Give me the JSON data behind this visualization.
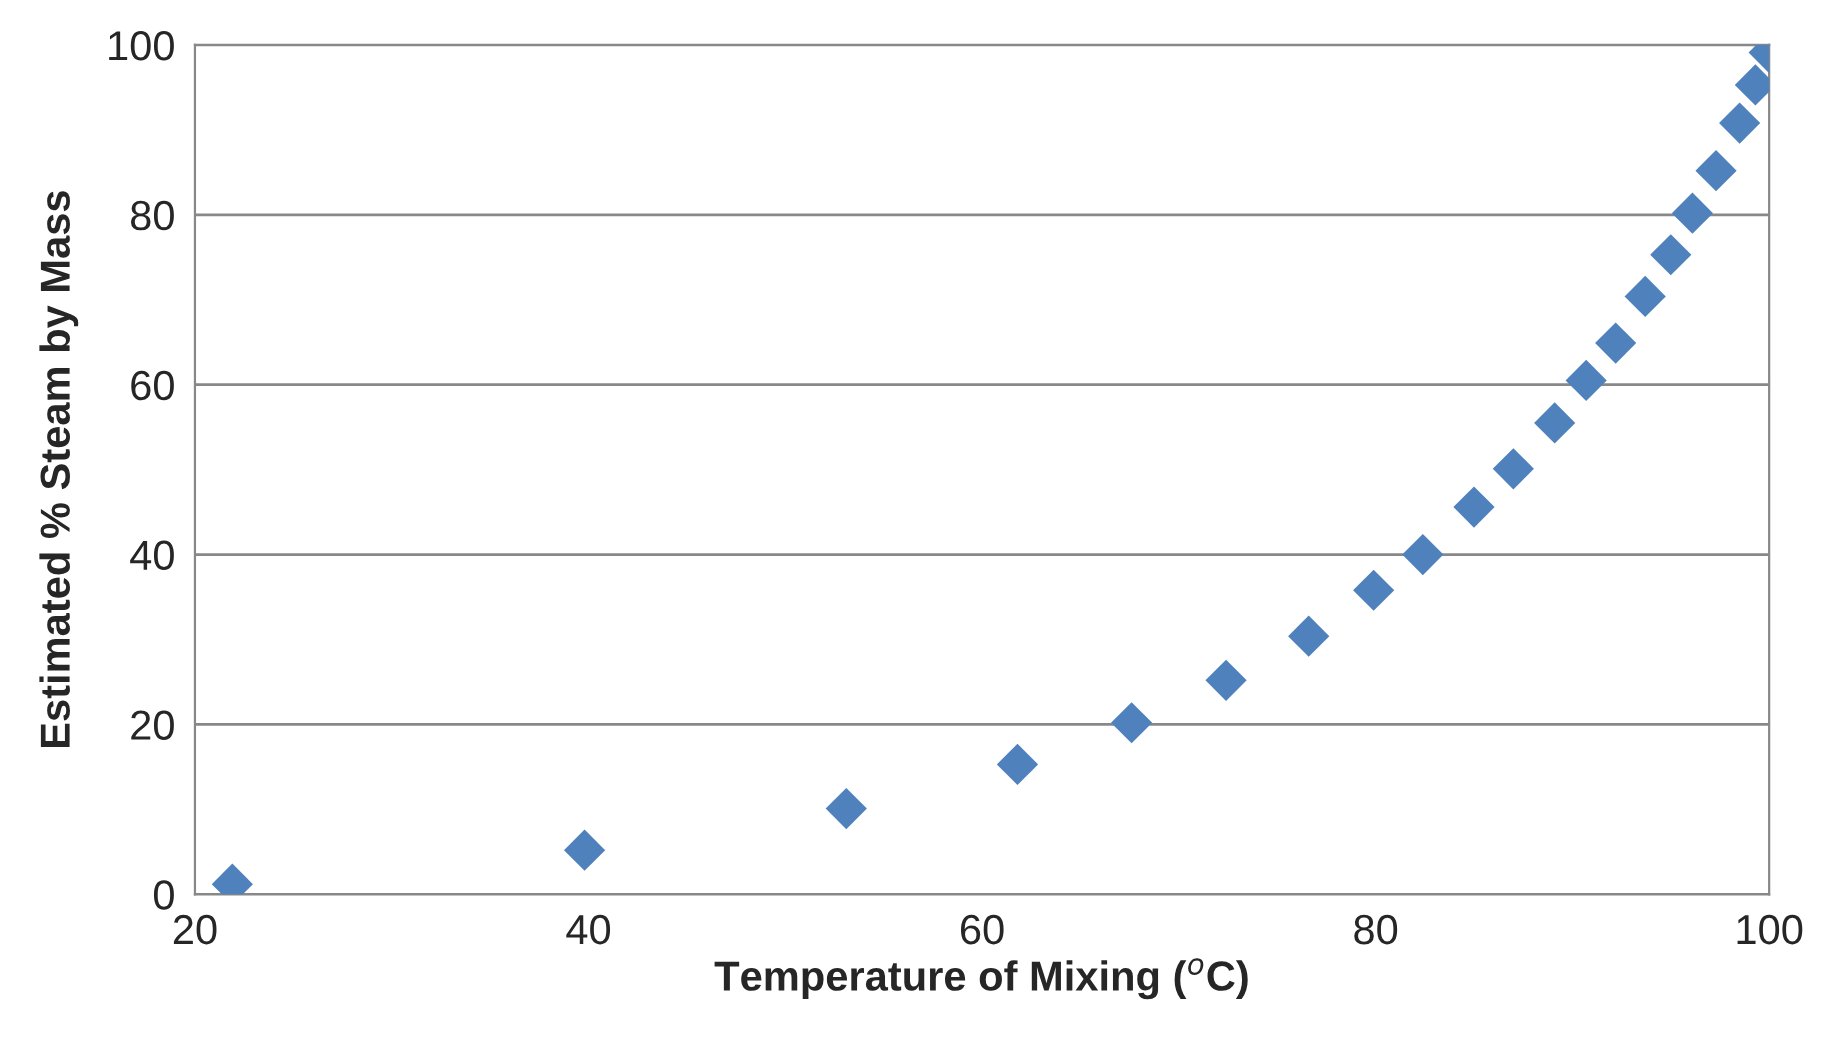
{
  "chart_data": {
    "type": "scatter",
    "xlabel": "Temperature of Mixing ($^{o}$C)",
    "ylabel": "Estimated % Steam by Mass",
    "series": [
      {
        "color": "#4f81bd",
        "x": [
          21.9,
          39.8,
          53.1,
          61.8,
          67.6,
          72.4,
          76.6,
          79.9,
          82.4,
          85.0,
          87.0,
          89.1,
          90.7,
          92.2,
          93.7,
          95.0,
          96.1,
          97.3,
          98.5,
          99.3,
          100.0
        ],
        "values": [
          1.2,
          5.2,
          10.1,
          15.3,
          20.2,
          25.2,
          30.4,
          35.8,
          40,
          45.6,
          50.1,
          55.5,
          60.5,
          64.9,
          70.4,
          75.3,
          80.2,
          85.2,
          90.8,
          95.3,
          99.1
        ]
      }
    ],
    "xlim": [
      20,
      100
    ],
    "xticks": [
      20,
      40,
      60,
      80,
      100
    ],
    "ylim": [
      0,
      100
    ],
    "yticks": [
      0,
      20,
      40,
      60,
      80,
      100
    ],
    "grid": "y",
    "marker": "diamond",
    "legend": false
  }
}
